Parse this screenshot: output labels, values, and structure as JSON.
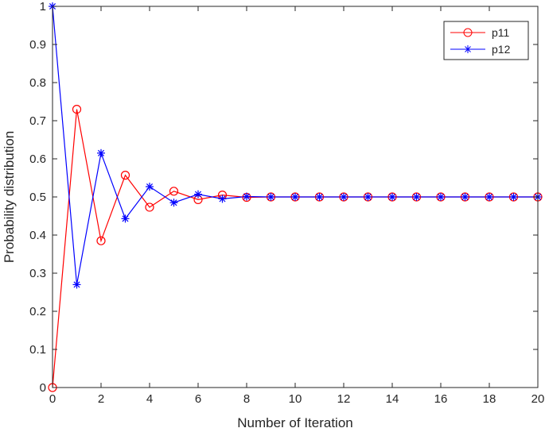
{
  "chart_data": {
    "type": "line",
    "title": "",
    "xlabel": "Number of Iteration",
    "ylabel": "Probability distribution",
    "xlim": [
      0,
      20
    ],
    "ylim": [
      0,
      1
    ],
    "xticks": [
      "0",
      "2",
      "4",
      "6",
      "8",
      "10",
      "12",
      "14",
      "16",
      "18",
      "20"
    ],
    "yticks": [
      "0",
      "0.1",
      "0.2",
      "0.3",
      "0.4",
      "0.5",
      "0.6",
      "0.7",
      "0.8",
      "0.9",
      "1"
    ],
    "grid": false,
    "legend_position": "top-right",
    "x": [
      0,
      1,
      2,
      3,
      4,
      5,
      6,
      7,
      8,
      9,
      10,
      11,
      12,
      13,
      14,
      15,
      16,
      17,
      18,
      19,
      20
    ],
    "series": [
      {
        "name": "p11",
        "color": "#ff0000",
        "marker": "circle",
        "values": [
          0,
          0.73,
          0.385,
          0.557,
          0.473,
          0.515,
          0.493,
          0.505,
          0.499,
          0.5,
          0.5,
          0.5,
          0.5,
          0.5,
          0.5,
          0.5,
          0.5,
          0.5,
          0.5,
          0.5,
          0.5
        ]
      },
      {
        "name": "p12",
        "color": "#0000ff",
        "marker": "asterisk",
        "values": [
          1,
          0.27,
          0.615,
          0.443,
          0.527,
          0.485,
          0.507,
          0.495,
          0.501,
          0.5,
          0.5,
          0.5,
          0.5,
          0.5,
          0.5,
          0.5,
          0.5,
          0.5,
          0.5,
          0.5,
          0.5
        ]
      }
    ]
  }
}
